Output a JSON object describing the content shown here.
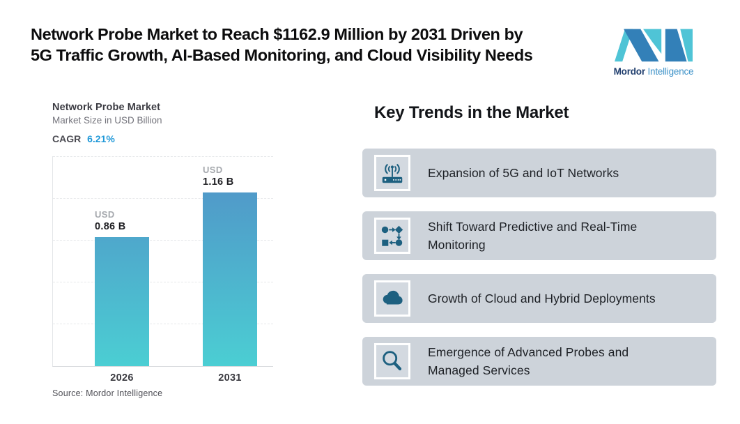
{
  "header": {
    "title_line1": "Network Probe Market to Reach $1162.9 Million by 2031 Driven by",
    "title_line2": "5G Traffic Growth, AI-Based Monitoring, and Cloud Visibility Needs"
  },
  "logo": {
    "brand_bold": "Mordor",
    "brand_light": "Intelligence"
  },
  "chart": {
    "title": "Network Probe Market",
    "subtitle": "Market Size in USD Billion",
    "cagr_label": "CAGR",
    "cagr_value": "6.21%",
    "source": "Source: Mordor Intelligence"
  },
  "chart_data": {
    "type": "bar",
    "title": "Network Probe Market",
    "ylabel": "Market Size in USD Billion",
    "categories": [
      "2026",
      "2031"
    ],
    "values": [
      0.86,
      1.16
    ],
    "unit": "USD Billion",
    "cagr_percent": 6.21,
    "ylim": [
      0,
      1.4
    ],
    "grid": "horizontal-dashed",
    "legend": "none",
    "bars": [
      {
        "year": "2026",
        "currency": "USD",
        "value_label": "0.86 B"
      },
      {
        "year": "2031",
        "currency": "USD",
        "value_label": "1.16 B"
      }
    ],
    "bar_gradient_top": "#509ac9",
    "bar_gradient_bottom": "#4bced3"
  },
  "trends": {
    "heading": "Key Trends in the Market",
    "items": [
      {
        "icon": "router-5g-icon",
        "label": "Expansion of 5G and IoT Networks"
      },
      {
        "icon": "workflow-icon",
        "label": "Shift Toward Predictive and Real-Time Monitoring"
      },
      {
        "icon": "cloud-icon",
        "label": "Growth of Cloud and Hybrid Deployments"
      },
      {
        "icon": "magnifier-icon",
        "label": "Emergence of Advanced Probes and Managed Services"
      }
    ]
  },
  "colors": {
    "accent_blue": "#1f98d8",
    "card_background": "#cdd3da",
    "icon_teal": "#1d6080",
    "logo_blue": "#3380b8",
    "logo_teal": "#4fc4d6"
  }
}
